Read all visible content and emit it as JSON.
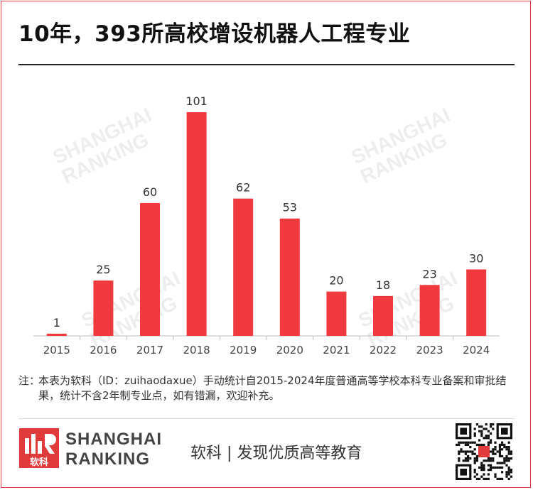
{
  "title": "10年，393所高校增设机器人工程专业",
  "chart_data": {
    "type": "bar",
    "categories": [
      "2015",
      "2016",
      "2017",
      "2018",
      "2019",
      "2020",
      "2021",
      "2022",
      "2023",
      "2024"
    ],
    "values": [
      1,
      25,
      60,
      101,
      62,
      53,
      20,
      18,
      23,
      30
    ],
    "bar_color": "#f03a3e",
    "ylim": [
      0,
      101
    ],
    "grid": false,
    "legend": "none"
  },
  "note": {
    "prefix": "注：",
    "text": "本表为软科（ID：zuihaodaxue）手动统计自2015-2024年度普通高等学校本科专业备案和审批结果，统计不含2年制专业点，如有错漏，欢迎补充。"
  },
  "footer": {
    "logo_text": "软科",
    "brand_line1": "SHANGHAI",
    "brand_line2": "RANKING",
    "tagline": "软科 | 发现优质高等教育"
  },
  "watermark": {
    "logo_text": "软科",
    "line1": "SHANGHAI",
    "line2": "RANKING"
  },
  "colors": {
    "accent": "#e03a3a",
    "bar": "#f03a3e"
  }
}
